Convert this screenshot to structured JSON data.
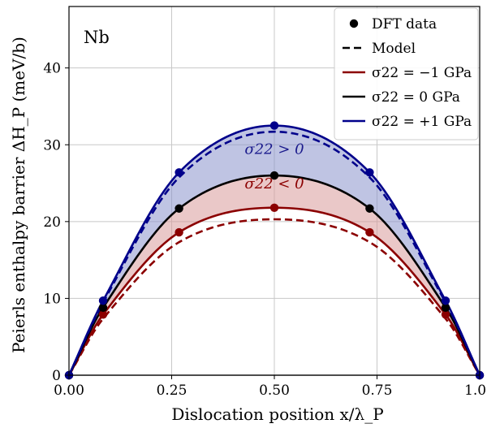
{
  "chart_data": {
    "type": "line",
    "panel_label": "Nb",
    "xlabel": "Dislocation position x/λ_P",
    "ylabel": "Peierls enthalpy barrier ΔH_P (meV/b)",
    "xlim": [
      0.0,
      1.0
    ],
    "ylim": [
      0,
      48
    ],
    "xticks": [
      0.0,
      0.25,
      0.5,
      0.75,
      1.0
    ],
    "xtick_labels": [
      "0.00",
      "0.25",
      "0.50",
      "0.75",
      "1.00"
    ],
    "yticks": [
      0,
      10,
      20,
      30,
      40
    ],
    "ytick_labels": [
      "0",
      "10",
      "20",
      "30",
      "40"
    ],
    "grid": true,
    "legend_position": "top-right",
    "legend": [
      {
        "label": "DFT data",
        "style": "marker",
        "color": "#000000"
      },
      {
        "label": "Model",
        "style": "dashed",
        "color": "#000000"
      },
      {
        "label": "σ22 = −1 GPa",
        "style": "solid",
        "color": "#8b0000"
      },
      {
        "label": "σ22 = 0 GPa",
        "style": "solid",
        "color": "#000000"
      },
      {
        "label": "σ22 = +1 GPa",
        "style": "solid",
        "color": "#00008b"
      }
    ],
    "annotations": [
      {
        "text": "σ22 > 0",
        "x": 0.5,
        "y": 28.8,
        "color": "#1a1a8c"
      },
      {
        "text": "σ22 < 0",
        "x": 0.5,
        "y": 24.3,
        "color": "#8b0000"
      }
    ],
    "series": [
      {
        "name": "σ22 = −1 GPa",
        "color": "#8b0000",
        "dft_x": [
          0.0,
          0.083,
          0.268,
          0.5,
          0.732,
          0.917,
          1.0
        ],
        "dft_y": [
          0,
          7.9,
          18.6,
          21.8,
          18.6,
          7.9,
          0
        ],
        "model_peak": 20.3
      },
      {
        "name": "σ22 = 0 GPa",
        "color": "#000000",
        "dft_x": [
          0.0,
          0.083,
          0.268,
          0.5,
          0.732,
          0.917,
          1.0
        ],
        "dft_y": [
          0,
          8.8,
          21.7,
          26.0,
          21.7,
          8.8,
          0
        ]
      },
      {
        "name": "σ22 = +1 GPa",
        "color": "#00008b",
        "dft_x": [
          0.0,
          0.083,
          0.268,
          0.5,
          0.732,
          0.917,
          1.0
        ],
        "dft_y": [
          0,
          9.7,
          26.4,
          32.5,
          26.4,
          9.7,
          0
        ],
        "model_peak": 31.7
      }
    ],
    "fills": [
      {
        "between": [
          "σ22 = 0 GPa",
          "σ22 = +1 GPa"
        ],
        "color": "#8a93cc"
      },
      {
        "between": [
          "σ22 = −1 GPa",
          "σ22 = 0 GPa"
        ],
        "color": "#d99a9a"
      }
    ],
    "colors": {
      "blue": "#00008b",
      "red": "#8b0000",
      "black": "#000000",
      "blue_fill": "#8a93cc",
      "red_fill": "#d99a9a",
      "grid": "#c8c8c8"
    }
  }
}
